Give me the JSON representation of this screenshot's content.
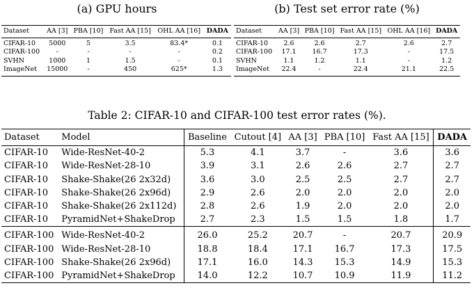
{
  "table_a": {
    "caption": "(a) GPU hours",
    "headers": [
      "Dataset",
      "AA [3]",
      "PBA [10]",
      "Fast AA [15]",
      "OHL AA [16]",
      "DADA"
    ],
    "rows": [
      [
        "CIFAR-10",
        "5000",
        "5",
        "3.5",
        "83.4*",
        "0.1"
      ],
      [
        "CIFAR-100",
        "-",
        "-",
        "-",
        "-",
        "0.2"
      ],
      [
        "SVHN",
        "1000",
        "1",
        "1.5",
        "-",
        "0.1"
      ],
      [
        "ImageNet",
        "15000",
        "-",
        "450",
        "625*",
        "1.3"
      ]
    ]
  },
  "table_b": {
    "caption": "(b) Test set error rate (%)",
    "headers": [
      "Dataset",
      "AA [3]",
      "PBA [10]",
      "Fast AA [15]",
      "OHL AA [16]",
      "DADA"
    ],
    "rows": [
      [
        "CIFAR-10",
        "2.6",
        "2.6",
        "2.7",
        "2.6",
        "2.7"
      ],
      [
        "CIFAR-100",
        "17.1",
        "16.7",
        "17.3",
        "-",
        "17.5"
      ],
      [
        "SVHN",
        "1.1",
        "1.2",
        "1.1",
        "-",
        "1.2"
      ],
      [
        "ImageNet",
        "22.4",
        "-",
        "22.4",
        "21.1",
        "22.5"
      ]
    ]
  },
  "table_2": {
    "caption": "Table 2: CIFAR-10 and CIFAR-100 test error rates (%).",
    "headers": [
      "Dataset",
      "Model",
      "Baseline",
      "Cutout [4]",
      "AA [3]",
      "PBA [10]",
      "Fast AA [15]",
      "DADA"
    ],
    "cifar10_rows": [
      [
        "CIFAR-10",
        "Wide-ResNet-40-2",
        "5.3",
        "4.1",
        "3.7",
        "-",
        "3.6",
        "3.6"
      ],
      [
        "CIFAR-10",
        "Wide-ResNet-28-10",
        "3.9",
        "3.1",
        "2.6",
        "2.6",
        "2.7",
        "2.7"
      ],
      [
        "CIFAR-10",
        "Shake-Shake(26 2x32d)",
        "3.6",
        "3.0",
        "2.5",
        "2.5",
        "2.7",
        "2.7"
      ],
      [
        "CIFAR-10",
        "Shake-Shake(26 2x96d)",
        "2.9",
        "2.6",
        "2.0",
        "2.0",
        "2.0",
        "2.0"
      ],
      [
        "CIFAR-10",
        "Shake-Shake(26 2x112d)",
        "2.8",
        "2.6",
        "1.9",
        "2.0",
        "2.0",
        "2.0"
      ],
      [
        "CIFAR-10",
        "PyramidNet+ShakeDrop",
        "2.7",
        "2.3",
        "1.5",
        "1.5",
        "1.8",
        "1.7"
      ]
    ],
    "cifar100_rows": [
      [
        "CIFAR-100",
        "Wide-ResNet-40-2",
        "26.0",
        "25.2",
        "20.7",
        "-",
        "20.7",
        "20.9"
      ],
      [
        "CIFAR-100",
        "Wide-ResNet-28-10",
        "18.8",
        "18.4",
        "17.1",
        "16.7",
        "17.3",
        "17.5"
      ],
      [
        "CIFAR-100",
        "Shake-Shake(26 2x96d)",
        "17.1",
        "16.0",
        "14.3",
        "15.3",
        "14.9",
        "15.3"
      ],
      [
        "CIFAR-100",
        "PyramidNet+ShakeDrop",
        "14.0",
        "12.2",
        "10.7",
        "10.9",
        "11.9",
        "11.2"
      ]
    ]
  }
}
